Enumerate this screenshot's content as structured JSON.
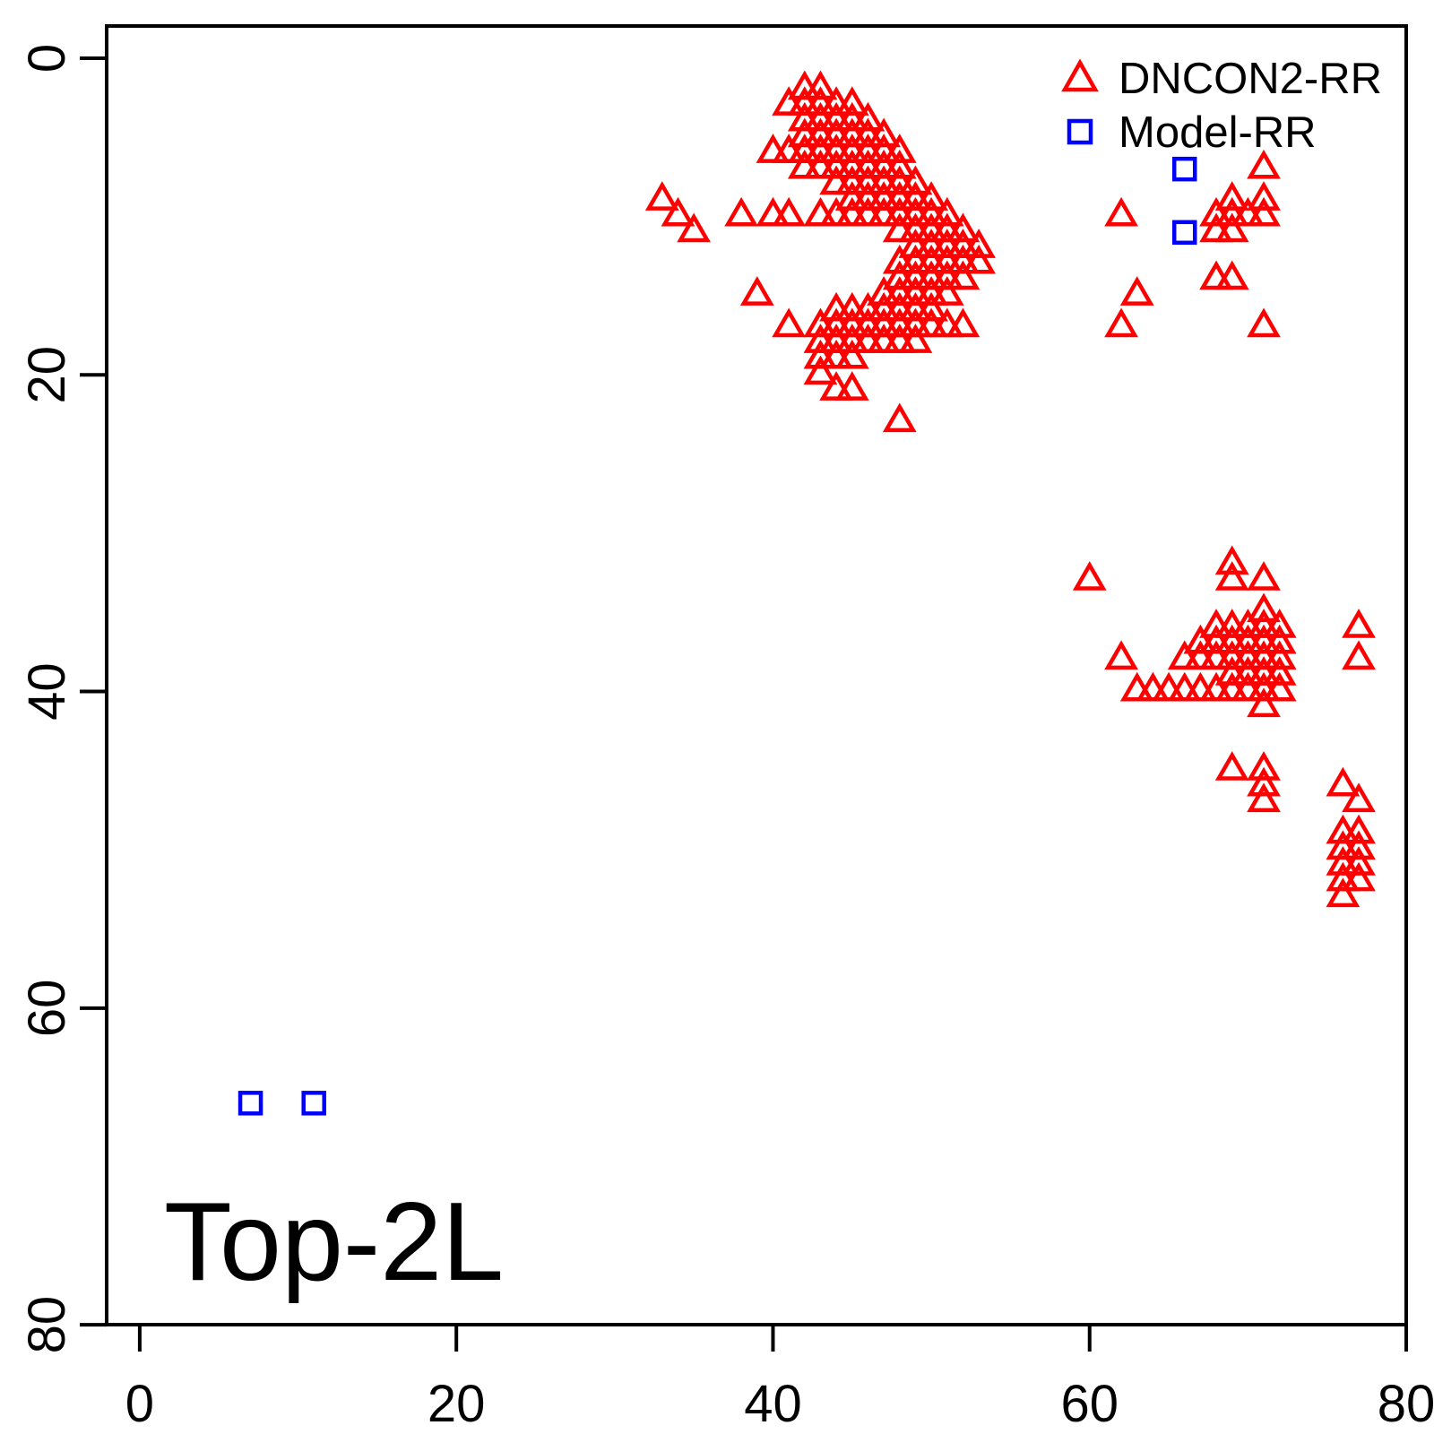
{
  "figure": {
    "panel_label": "Top-2L"
  },
  "legend": {
    "items": [
      {
        "label": "DNCON2-RR",
        "symbol": "triangle",
        "color": "#ff0000"
      },
      {
        "label": "Model-RR",
        "symbol": "square",
        "color": "#0000ff"
      }
    ]
  },
  "axes": {
    "x_tick_labels": [
      "0",
      "20",
      "40",
      "60",
      "80"
    ],
    "y_tick_labels": [
      "0",
      "20",
      "40",
      "60",
      "80"
    ]
  },
  "chart_data": {
    "type": "scatter",
    "title": "Top-2L",
    "xlabel": "",
    "ylabel": "",
    "xlim": [
      0,
      80
    ],
    "ylim": [
      80,
      0
    ],
    "y_axis_reversed": true,
    "grid": false,
    "legend_position": "top-right",
    "x_ticks": [
      0,
      20,
      40,
      60,
      80
    ],
    "y_ticks": [
      0,
      20,
      40,
      60,
      80
    ],
    "series": [
      {
        "name": "DNCON2-RR",
        "marker": "triangle-open",
        "color": "#ff0000",
        "points": [
          [
            42,
            2
          ],
          [
            43,
            2
          ],
          [
            41,
            3
          ],
          [
            42,
            3
          ],
          [
            43,
            3
          ],
          [
            44,
            3
          ],
          [
            45,
            3
          ],
          [
            42,
            4
          ],
          [
            43,
            4
          ],
          [
            44,
            4
          ],
          [
            45,
            4
          ],
          [
            46,
            4
          ],
          [
            42,
            5
          ],
          [
            43,
            5
          ],
          [
            44,
            5
          ],
          [
            45,
            5
          ],
          [
            46,
            5
          ],
          [
            47,
            5
          ],
          [
            40,
            6
          ],
          [
            41,
            6
          ],
          [
            42,
            6
          ],
          [
            43,
            6
          ],
          [
            44,
            6
          ],
          [
            45,
            6
          ],
          [
            46,
            6
          ],
          [
            47,
            6
          ],
          [
            48,
            6
          ],
          [
            42,
            7
          ],
          [
            43,
            7
          ],
          [
            44,
            7
          ],
          [
            45,
            7
          ],
          [
            46,
            7
          ],
          [
            47,
            7
          ],
          [
            48,
            7
          ],
          [
            71,
            7
          ],
          [
            44,
            8
          ],
          [
            45,
            8
          ],
          [
            46,
            8
          ],
          [
            47,
            8
          ],
          [
            48,
            8
          ],
          [
            49,
            8
          ],
          [
            33,
            9
          ],
          [
            45,
            9
          ],
          [
            46,
            9
          ],
          [
            47,
            9
          ],
          [
            48,
            9
          ],
          [
            49,
            9
          ],
          [
            50,
            9
          ],
          [
            69,
            9
          ],
          [
            71,
            9
          ],
          [
            34,
            10
          ],
          [
            38,
            10
          ],
          [
            40,
            10
          ],
          [
            41,
            10
          ],
          [
            43,
            10
          ],
          [
            44,
            10
          ],
          [
            45,
            10
          ],
          [
            46,
            10
          ],
          [
            47,
            10
          ],
          [
            48,
            10
          ],
          [
            49,
            10
          ],
          [
            50,
            10
          ],
          [
            51,
            10
          ],
          [
            62,
            10
          ],
          [
            68,
            10
          ],
          [
            69,
            10
          ],
          [
            70,
            10
          ],
          [
            71,
            10
          ],
          [
            35,
            11
          ],
          [
            48,
            11
          ],
          [
            49,
            11
          ],
          [
            50,
            11
          ],
          [
            51,
            11
          ],
          [
            52,
            11
          ],
          [
            68,
            11
          ],
          [
            69,
            11
          ],
          [
            49,
            12
          ],
          [
            50,
            12
          ],
          [
            51,
            12
          ],
          [
            52,
            12
          ],
          [
            53,
            12
          ],
          [
            48,
            13
          ],
          [
            49,
            13
          ],
          [
            50,
            13
          ],
          [
            51,
            13
          ],
          [
            52,
            13
          ],
          [
            53,
            13
          ],
          [
            48,
            14
          ],
          [
            49,
            14
          ],
          [
            50,
            14
          ],
          [
            51,
            14
          ],
          [
            52,
            14
          ],
          [
            68,
            14
          ],
          [
            69,
            14
          ],
          [
            39,
            15
          ],
          [
            47,
            15
          ],
          [
            48,
            15
          ],
          [
            49,
            15
          ],
          [
            50,
            15
          ],
          [
            51,
            15
          ],
          [
            63,
            15
          ],
          [
            44,
            16
          ],
          [
            45,
            16
          ],
          [
            46,
            16
          ],
          [
            47,
            16
          ],
          [
            48,
            16
          ],
          [
            49,
            16
          ],
          [
            50,
            16
          ],
          [
            41,
            17
          ],
          [
            43,
            17
          ],
          [
            44,
            17
          ],
          [
            45,
            17
          ],
          [
            46,
            17
          ],
          [
            47,
            17
          ],
          [
            48,
            17
          ],
          [
            49,
            17
          ],
          [
            50,
            17
          ],
          [
            51,
            17
          ],
          [
            52,
            17
          ],
          [
            62,
            17
          ],
          [
            71,
            17
          ],
          [
            43,
            18
          ],
          [
            44,
            18
          ],
          [
            45,
            18
          ],
          [
            46,
            18
          ],
          [
            47,
            18
          ],
          [
            48,
            18
          ],
          [
            49,
            18
          ],
          [
            43,
            19
          ],
          [
            44,
            19
          ],
          [
            45,
            19
          ],
          [
            43,
            20
          ],
          [
            44,
            21
          ],
          [
            45,
            21
          ],
          [
            48,
            23
          ],
          [
            69,
            32
          ],
          [
            60,
            33
          ],
          [
            69,
            33
          ],
          [
            71,
            33
          ],
          [
            71,
            35
          ],
          [
            68,
            36
          ],
          [
            69,
            36
          ],
          [
            70,
            36
          ],
          [
            71,
            36
          ],
          [
            72,
            36
          ],
          [
            77,
            36
          ],
          [
            67,
            37
          ],
          [
            68,
            37
          ],
          [
            69,
            37
          ],
          [
            70,
            37
          ],
          [
            71,
            37
          ],
          [
            72,
            37
          ],
          [
            62,
            38
          ],
          [
            66,
            38
          ],
          [
            67,
            38
          ],
          [
            68,
            38
          ],
          [
            69,
            38
          ],
          [
            70,
            38
          ],
          [
            71,
            38
          ],
          [
            72,
            38
          ],
          [
            77,
            38
          ],
          [
            69,
            39
          ],
          [
            70,
            39
          ],
          [
            71,
            39
          ],
          [
            72,
            39
          ],
          [
            63,
            40
          ],
          [
            64,
            40
          ],
          [
            65,
            40
          ],
          [
            66,
            40
          ],
          [
            67,
            40
          ],
          [
            68,
            40
          ],
          [
            69,
            40
          ],
          [
            70,
            40
          ],
          [
            71,
            40
          ],
          [
            72,
            40
          ],
          [
            71,
            41
          ],
          [
            69,
            45
          ],
          [
            71,
            45
          ],
          [
            71,
            46
          ],
          [
            76,
            46
          ],
          [
            71,
            47
          ],
          [
            77,
            47
          ],
          [
            76,
            49
          ],
          [
            77,
            49
          ],
          [
            76,
            50
          ],
          [
            77,
            50
          ],
          [
            76,
            51
          ],
          [
            77,
            51
          ],
          [
            76,
            52
          ],
          [
            77,
            52
          ],
          [
            76,
            53
          ]
        ]
      },
      {
        "name": "Model-RR",
        "marker": "square-open",
        "color": "#0000ff",
        "points": [
          [
            66,
            7
          ],
          [
            66,
            11
          ],
          [
            7,
            66
          ],
          [
            11,
            66
          ]
        ]
      }
    ]
  }
}
